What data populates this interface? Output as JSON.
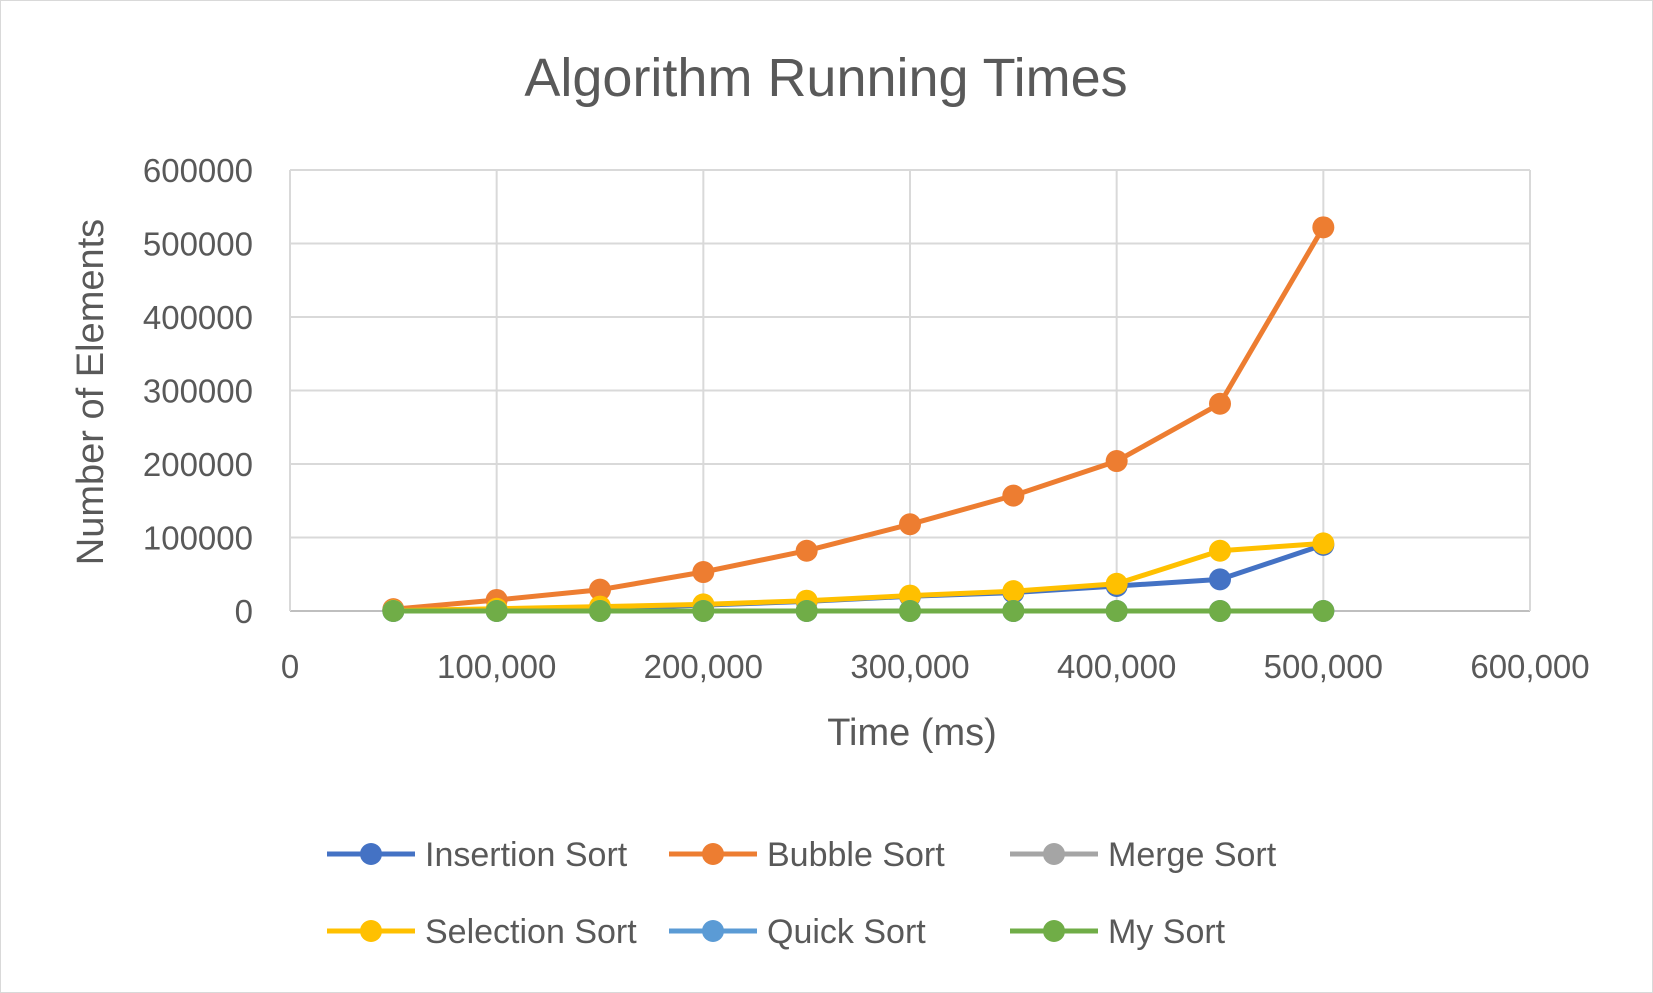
{
  "chart_data": {
    "type": "scatter",
    "title": "Algorithm Running Times",
    "xlabel": "Time (ms)",
    "ylabel": "Number of Elements",
    "xlim": [
      0,
      600000
    ],
    "ylim": [
      0,
      600000
    ],
    "x_ticks": [
      "0",
      "100,000",
      "200,000",
      "300,000",
      "400,000",
      "500,000",
      "600,000"
    ],
    "y_ticks": [
      "0",
      "100000",
      "200000",
      "300000",
      "400000",
      "500000",
      "600000"
    ],
    "grid": true,
    "legend": "bottom",
    "x": [
      50000,
      100000,
      150000,
      200000,
      250000,
      300000,
      350000,
      400000,
      450000,
      500000
    ],
    "series": [
      {
        "name": "Insertion Sort",
        "color": "#4472c4",
        "values": [
          400,
          1500,
          4000,
          8000,
          13000,
          20000,
          25000,
          34000,
          43000,
          90000
        ]
      },
      {
        "name": "Bubble Sort",
        "color": "#ed7d31",
        "values": [
          2500,
          15000,
          29000,
          53000,
          82000,
          118000,
          157000,
          204000,
          282000,
          522000
        ]
      },
      {
        "name": "Merge Sort",
        "color": "#a5a5a5",
        "values": [
          0,
          0,
          0,
          0,
          0,
          0,
          0,
          0,
          0,
          0
        ]
      },
      {
        "name": "Selection Sort",
        "color": "#ffc000",
        "values": [
          600,
          3000,
          6000,
          9000,
          14000,
          21000,
          27000,
          37000,
          82000,
          92000
        ]
      },
      {
        "name": "Quick Sort",
        "color": "#5b9bd5",
        "values": [
          0,
          0,
          0,
          0,
          0,
          0,
          0,
          0,
          0,
          0
        ]
      },
      {
        "name": "My Sort",
        "color": "#70ad47",
        "values": [
          0,
          0,
          0,
          0,
          0,
          0,
          0,
          0,
          0,
          0
        ]
      }
    ]
  }
}
